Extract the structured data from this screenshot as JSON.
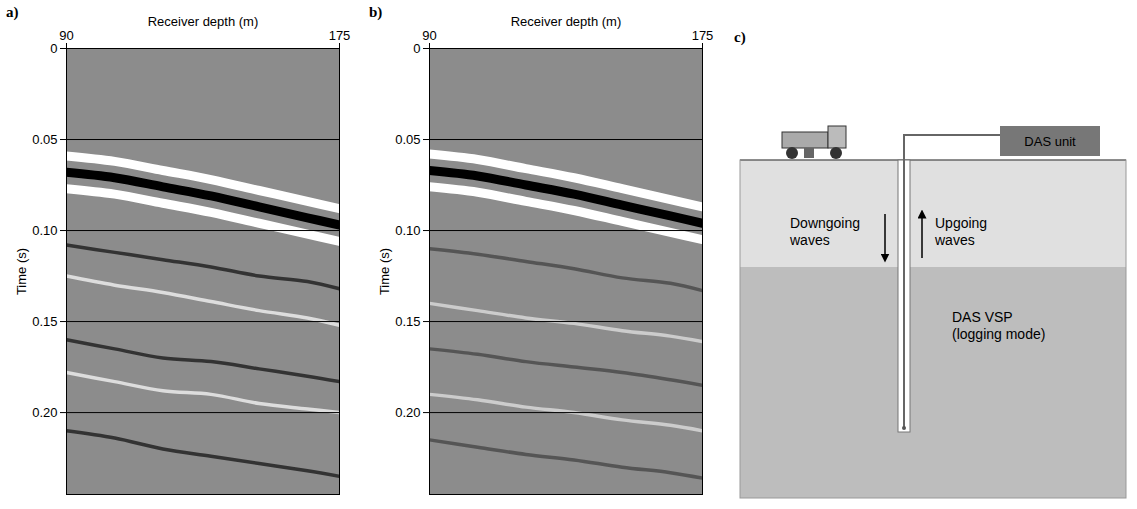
{
  "chart_data": [
    {
      "type": "line",
      "title": "a)",
      "xlabel": "Receiver depth (m)",
      "ylabel": "Time (s)",
      "x": [
        90,
        105,
        120,
        135,
        150,
        165,
        175
      ],
      "xlim": [
        90,
        175
      ],
      "xticks": [
        90,
        175
      ],
      "ylim": [
        0,
        0.245
      ],
      "yticks": [
        0,
        0.05,
        {
          "value": 0.1,
          "label": "0.10"
        },
        0.15,
        {
          "value": 0.2,
          "label": "0.20"
        }
      ],
      "grid": true,
      "series": [
        {
          "color": "#ffffff",
          "line_style": "thick",
          "values": [
            0.059,
            0.062,
            0.067,
            0.072,
            0.078,
            0.084,
            0.088
          ]
        },
        {
          "color": "#000000",
          "line_style": "thick",
          "values": [
            0.068,
            0.071,
            0.076,
            0.081,
            0.087,
            0.093,
            0.097
          ]
        },
        {
          "color": "#ffffff",
          "line_style": "thick",
          "values": [
            0.077,
            0.08,
            0.085,
            0.09,
            0.096,
            0.102,
            0.106
          ]
        },
        {
          "color": "#333333",
          "line_style": "thin",
          "values": [
            0.108,
            0.112,
            0.116,
            0.12,
            0.125,
            0.128,
            0.132
          ]
        },
        {
          "color": "#dddddd",
          "line_style": "thin",
          "values": [
            0.125,
            0.13,
            0.134,
            0.139,
            0.144,
            0.148,
            0.152
          ]
        },
        {
          "color": "#333333",
          "line_style": "thin",
          "values": [
            0.16,
            0.165,
            0.17,
            0.172,
            0.176,
            0.18,
            0.183
          ]
        },
        {
          "color": "#dddddd",
          "line_style": "thin",
          "values": [
            0.178,
            0.183,
            0.188,
            0.19,
            0.195,
            0.198,
            0.2
          ]
        },
        {
          "color": "#333333",
          "line_style": "thin",
          "values": [
            0.21,
            0.214,
            0.22,
            0.224,
            0.228,
            0.232,
            0.235
          ]
        }
      ]
    },
    {
      "type": "line",
      "title": "b)",
      "xlabel": "Receiver depth (m)",
      "ylabel": "Time (s)",
      "x": [
        90,
        105,
        120,
        135,
        150,
        165,
        175
      ],
      "xlim": [
        90,
        175
      ],
      "xticks": [
        90,
        175
      ],
      "ylim": [
        0,
        0.245
      ],
      "yticks": [
        0,
        0.05,
        {
          "value": 0.1,
          "label": "0.10"
        },
        0.15,
        {
          "value": 0.2,
          "label": "0.20"
        }
      ],
      "grid": true,
      "series": [
        {
          "color": "#ffffff",
          "line_style": "thick",
          "values": [
            0.058,
            0.061,
            0.066,
            0.071,
            0.077,
            0.083,
            0.087
          ]
        },
        {
          "color": "#000000",
          "line_style": "thick",
          "values": [
            0.067,
            0.07,
            0.075,
            0.08,
            0.086,
            0.092,
            0.096
          ]
        },
        {
          "color": "#ffffff",
          "line_style": "thick",
          "values": [
            0.076,
            0.079,
            0.084,
            0.089,
            0.095,
            0.101,
            0.105
          ]
        },
        {
          "color": "#555555",
          "line_style": "thin",
          "values": [
            0.11,
            0.113,
            0.117,
            0.121,
            0.126,
            0.129,
            0.133
          ]
        },
        {
          "color": "#cccccc",
          "line_style": "thin",
          "values": [
            0.14,
            0.144,
            0.148,
            0.151,
            0.155,
            0.158,
            0.161
          ]
        },
        {
          "color": "#555555",
          "line_style": "thin",
          "values": [
            0.165,
            0.168,
            0.172,
            0.175,
            0.178,
            0.182,
            0.185
          ]
        },
        {
          "color": "#cccccc",
          "line_style": "thin",
          "values": [
            0.19,
            0.193,
            0.197,
            0.2,
            0.204,
            0.207,
            0.21
          ]
        },
        {
          "color": "#555555",
          "line_style": "thin",
          "values": [
            0.215,
            0.219,
            0.223,
            0.226,
            0.23,
            0.233,
            0.236
          ]
        }
      ]
    }
  ],
  "diagram": {
    "label": "c)",
    "unit": "DAS unit",
    "downgoing": [
      "Downgoing",
      "waves"
    ],
    "upgoing": [
      "Upgoing",
      "waves"
    ],
    "survey": [
      "DAS VSP",
      "(logging mode)"
    ]
  }
}
